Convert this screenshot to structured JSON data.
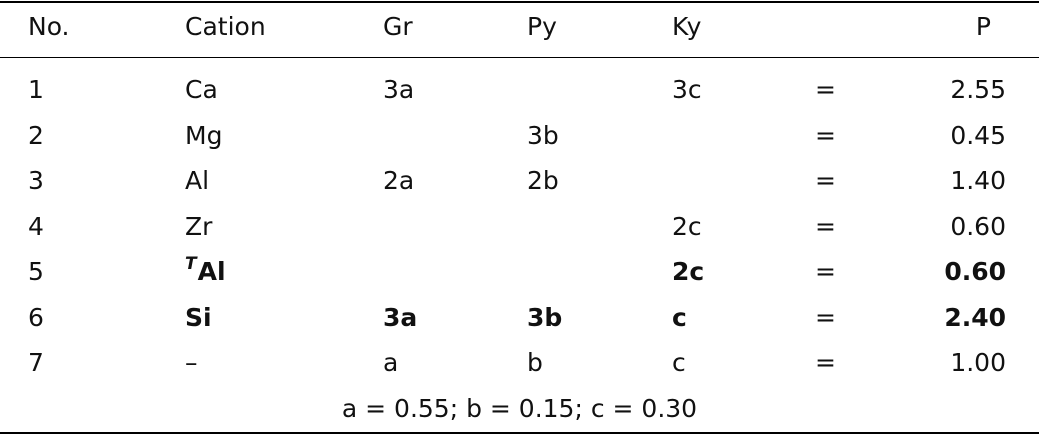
{
  "header": {
    "no": "No.",
    "cation": "Cation",
    "gr": "Gr",
    "py": "Py",
    "ky": "Ky",
    "p": "P"
  },
  "rows": [
    {
      "no": "1",
      "cation": "Ca",
      "cation_sup": "",
      "gr": "3a",
      "py": "",
      "ky": "3c",
      "eq": "=",
      "p": "2.55",
      "bold": false
    },
    {
      "no": "2",
      "cation": "Mg",
      "cation_sup": "",
      "gr": "",
      "py": "3b",
      "ky": "",
      "eq": "=",
      "p": "0.45",
      "bold": false
    },
    {
      "no": "3",
      "cation": "Al",
      "cation_sup": "",
      "gr": "2a",
      "py": "2b",
      "ky": "",
      "eq": "=",
      "p": "1.40",
      "bold": false
    },
    {
      "no": "4",
      "cation": "Zr",
      "cation_sup": "",
      "gr": "",
      "py": "",
      "ky": "2c",
      "eq": "=",
      "p": "0.60",
      "bold": false
    },
    {
      "no": "5",
      "cation": "Al",
      "cation_sup": "T",
      "gr": "",
      "py": "",
      "ky": "2c",
      "eq": "=",
      "p": "0.60",
      "bold": true
    },
    {
      "no": "6",
      "cation": "Si",
      "cation_sup": "",
      "gr": "3a",
      "py": "3b",
      "ky": "c",
      "eq": "=",
      "p": "2.40",
      "bold": true
    },
    {
      "no": "7",
      "cation": "–",
      "cation_sup": "",
      "gr": "a",
      "py": "b",
      "ky": "c",
      "eq": "=",
      "p": "1.00",
      "bold": false
    }
  ],
  "footnote": "a = 0.55; b = 0.15; c = 0.30"
}
